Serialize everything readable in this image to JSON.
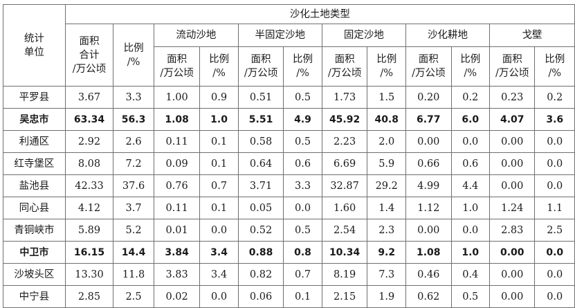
{
  "table": {
    "header": {
      "unit_label_line1": "统计",
      "unit_label_line2": "单位",
      "group_title": "沙化土地类型",
      "total_area_line1": "面积",
      "total_area_line2": "合计",
      "total_area_line3": "/万公顷",
      "total_ratio_line1": "比例",
      "total_ratio_line2": "/%",
      "categories": [
        "流动沙地",
        "半固定沙地",
        "固定沙地",
        "沙化耕地",
        "戈壁"
      ],
      "sub_area_line1": "面积",
      "sub_area_line2": "/万公顷",
      "sub_ratio_line1": "比例",
      "sub_ratio_line2": "/%"
    },
    "rows": [
      {
        "unit": "平罗县",
        "values": [
          "3.67",
          "3.3",
          "1.00",
          "0.9",
          "0.51",
          "0.5",
          "1.73",
          "1.5",
          "0.20",
          "0.2",
          "0.23",
          "0.2"
        ]
      },
      {
        "unit": "吴忠市",
        "values": [
          "63.34",
          "56.3",
          "1.08",
          "1.0",
          "5.51",
          "4.9",
          "45.92",
          "40.8",
          "6.77",
          "6.0",
          "4.07",
          "3.6"
        ],
        "bold": true
      },
      {
        "unit": "利通区",
        "values": [
          "2.92",
          "2.6",
          "0.11",
          "0.1",
          "0.58",
          "0.5",
          "2.23",
          "2.0",
          "0.00",
          "0.0",
          "0.00",
          "0.0"
        ]
      },
      {
        "unit": "红寺堡区",
        "values": [
          "8.08",
          "7.2",
          "0.09",
          "0.1",
          "0.64",
          "0.6",
          "6.69",
          "5.9",
          "0.66",
          "0.6",
          "0.00",
          "0.0"
        ]
      },
      {
        "unit": "盐池县",
        "values": [
          "42.33",
          "37.6",
          "0.76",
          "0.7",
          "3.71",
          "3.3",
          "32.87",
          "29.2",
          "4.99",
          "4.4",
          "0.00",
          "0.0"
        ]
      },
      {
        "unit": "同心县",
        "values": [
          "4.12",
          "3.7",
          "0.11",
          "0.1",
          "0.05",
          "0.0",
          "1.60",
          "1.4",
          "1.12",
          "1.0",
          "1.24",
          "1.1"
        ]
      },
      {
        "unit": "青铜峡市",
        "values": [
          "5.89",
          "5.2",
          "0.01",
          "0.0",
          "0.52",
          "0.5",
          "2.54",
          "2.3",
          "0.00",
          "0.0",
          "2.83",
          "2.5"
        ]
      },
      {
        "unit": "中卫市",
        "values": [
          "16.15",
          "14.4",
          "3.84",
          "3.4",
          "0.88",
          "0.8",
          "10.34",
          "9.2",
          "1.08",
          "1.0",
          "0.00",
          "0.0"
        ],
        "bold": true
      },
      {
        "unit": "沙坡头区",
        "values": [
          "13.30",
          "11.8",
          "3.83",
          "3.4",
          "0.82",
          "0.7",
          "8.19",
          "7.3",
          "0.46",
          "0.4",
          "0.00",
          "0.0"
        ]
      },
      {
        "unit": "中宁县",
        "values": [
          "2.85",
          "2.5",
          "0.02",
          "0.0",
          "0.06",
          "0.1",
          "2.15",
          "1.9",
          "0.62",
          "0.5",
          "0.00",
          "0.0"
        ]
      }
    ]
  }
}
